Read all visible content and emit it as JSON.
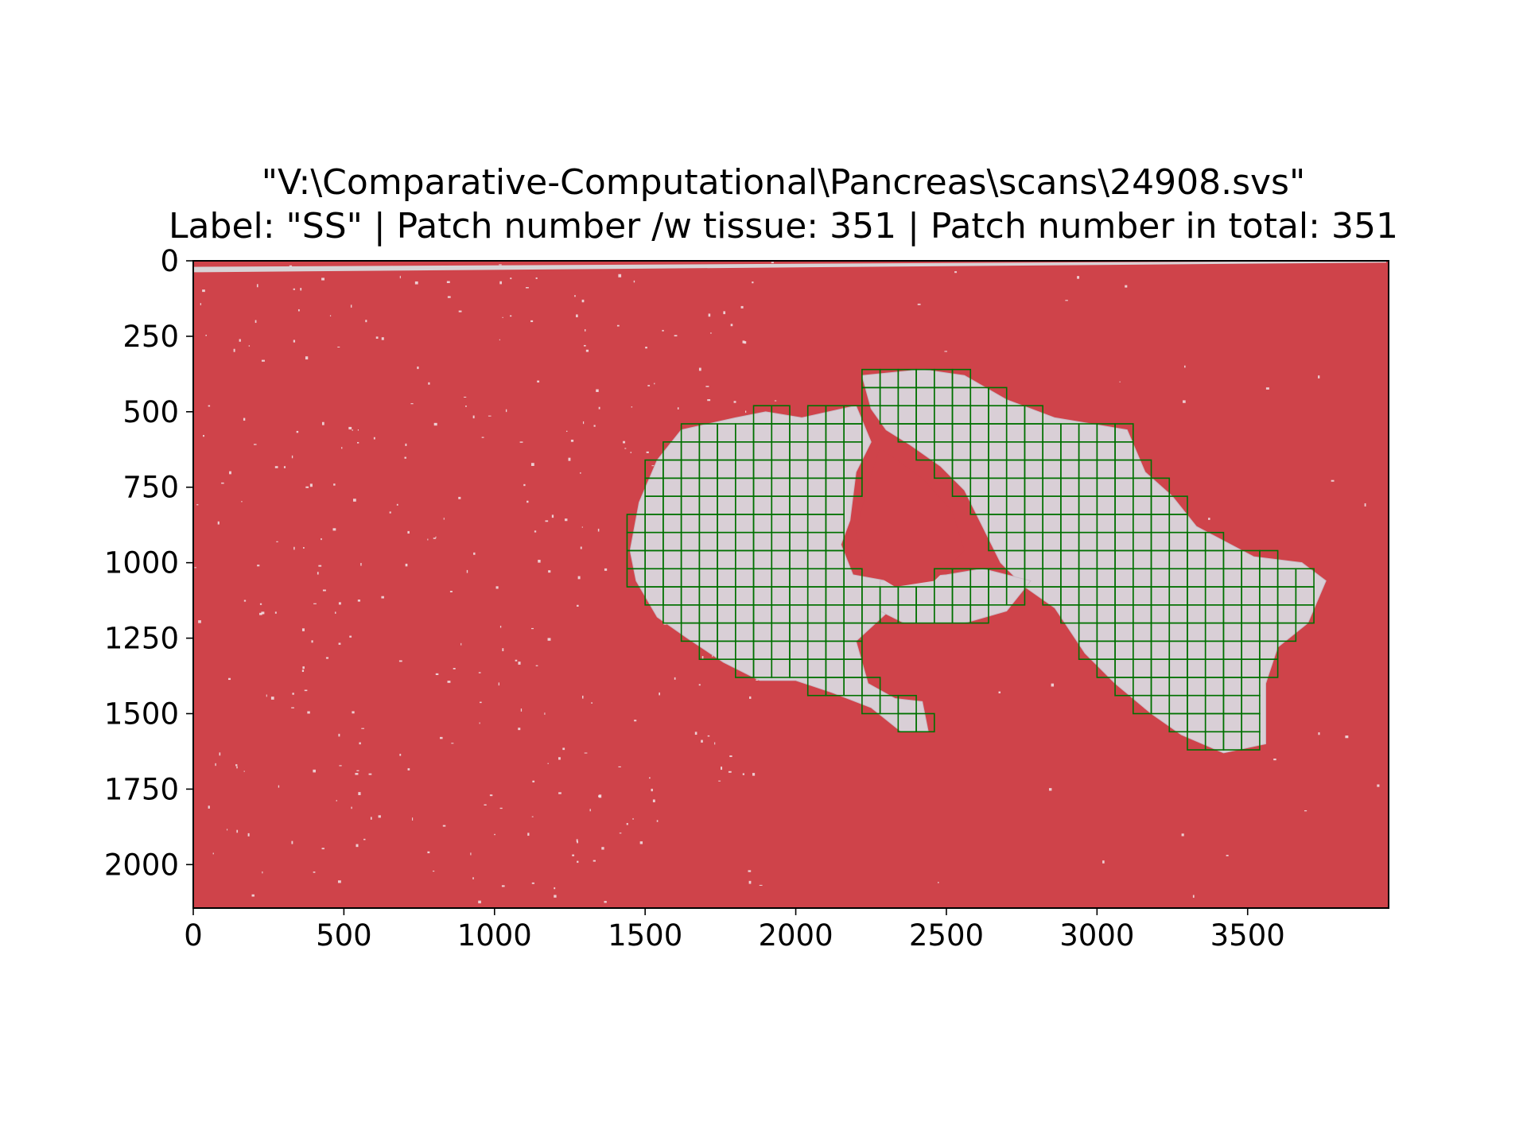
{
  "chart_data": {
    "type": "heatmap",
    "title": "\"V:\\Comparative-Computational\\Pancreas\\scans\\24908.svs\"",
    "subtitle": "Label: \"SS\" | Patch number /w tissue: 351 | Patch number in total: 351",
    "xlabel": "",
    "ylabel": "",
    "xlim": [
      0,
      3968
    ],
    "ylim": [
      2144,
      0
    ],
    "x_ticks": [
      0,
      500,
      1000,
      1500,
      2000,
      2500,
      3000,
      3500
    ],
    "y_ticks": [
      0,
      250,
      500,
      750,
      1000,
      1250,
      1500,
      1750,
      2000
    ],
    "x_tick_labels": [
      "0",
      "500",
      "1000",
      "1500",
      "2000",
      "2500",
      "3000",
      "3500"
    ],
    "y_tick_labels": [
      "0",
      "250",
      "500",
      "750",
      "1000",
      "1250",
      "1500",
      "1750",
      "2000"
    ],
    "grid": false,
    "background_color": "#cf434a",
    "tissue_color": "#d9cfd6",
    "patch_edge_color": "#007000",
    "patch_size": 60,
    "patch_count_with_tissue": 351,
    "patch_count_total": 351
  }
}
